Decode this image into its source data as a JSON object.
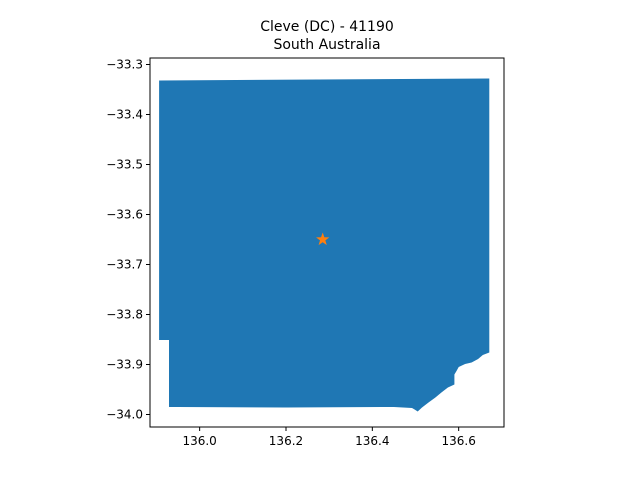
{
  "title": {
    "line1": "Cleve (DC) - 41190",
    "line2": "South Australia"
  },
  "colors": {
    "region_fill": "#1f77b4",
    "marker": "#ff7f0e"
  },
  "chart_data": {
    "type": "map",
    "title": "Cleve (DC) - 41190\nSouth Australia",
    "xlabel": "",
    "ylabel": "",
    "xlim": [
      135.885,
      136.705
    ],
    "ylim": [
      -34.025,
      -33.287
    ],
    "x_ticks": [
      136.0,
      136.2,
      136.4,
      136.6
    ],
    "x_tick_labels": [
      "136.0",
      "136.2",
      "136.4",
      "136.6"
    ],
    "y_ticks": [
      -33.3,
      -33.4,
      -33.5,
      -33.6,
      -33.7,
      -33.8,
      -33.9,
      -34.0
    ],
    "y_tick_labels": [
      "−33.3",
      "−33.4",
      "−33.5",
      "−33.6",
      "−33.7",
      "−33.8",
      "−33.9",
      "−34.0"
    ],
    "grid": false,
    "region": {
      "name": "Cleve (DC) - 41190",
      "boundary": [
        [
          135.906,
          -33.332
        ],
        [
          136.671,
          -33.328
        ],
        [
          136.671,
          -33.876
        ],
        [
          136.656,
          -33.881
        ],
        [
          136.645,
          -33.889
        ],
        [
          136.63,
          -33.896
        ],
        [
          136.615,
          -33.899
        ],
        [
          136.6,
          -33.905
        ],
        [
          136.595,
          -33.913
        ],
        [
          136.59,
          -33.92
        ],
        [
          136.59,
          -33.93
        ],
        [
          136.59,
          -33.94
        ],
        [
          136.575,
          -33.946
        ],
        [
          136.56,
          -33.956
        ],
        [
          136.546,
          -33.966
        ],
        [
          136.53,
          -33.976
        ],
        [
          136.515,
          -33.986
        ],
        [
          136.505,
          -33.994
        ],
        [
          136.498,
          -33.99
        ],
        [
          136.492,
          -33.987
        ],
        [
          136.45,
          -33.985
        ],
        [
          136.2,
          -33.986
        ],
        [
          135.95,
          -33.985
        ],
        [
          135.929,
          -33.985
        ],
        [
          135.929,
          -33.851
        ],
        [
          135.906,
          -33.851
        ]
      ]
    },
    "marker": {
      "symbol": "star",
      "x": 136.285,
      "y": -33.65
    }
  }
}
